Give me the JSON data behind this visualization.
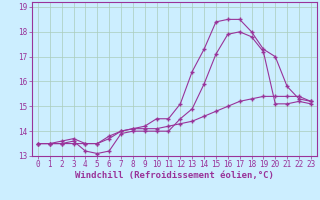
{
  "background_color": "#cceeff",
  "grid_color": "#aaccbb",
  "line_color": "#993399",
  "xlabel": "Windchill (Refroidissement éolien,°C)",
  "xlabel_fontsize": 6.5,
  "tick_fontsize": 5.5,
  "xlim": [
    -0.5,
    23.5
  ],
  "ylim": [
    13.0,
    19.2
  ],
  "yticks": [
    13,
    14,
    15,
    16,
    17,
    18,
    19
  ],
  "xticks": [
    0,
    1,
    2,
    3,
    4,
    5,
    6,
    7,
    8,
    9,
    10,
    11,
    12,
    13,
    14,
    15,
    16,
    17,
    18,
    19,
    20,
    21,
    22,
    23
  ],
  "line1_x": [
    0,
    1,
    2,
    3,
    4,
    5,
    6,
    7,
    8,
    9,
    10,
    11,
    12,
    13,
    14,
    15,
    16,
    17,
    18,
    19,
    20,
    21,
    22,
    23
  ],
  "line1_y": [
    13.5,
    13.5,
    13.5,
    13.5,
    13.5,
    13.5,
    13.7,
    14.0,
    14.1,
    14.1,
    14.1,
    14.2,
    14.3,
    14.4,
    14.6,
    14.8,
    15.0,
    15.2,
    15.3,
    15.4,
    15.4,
    15.4,
    15.4,
    15.2
  ],
  "line2_x": [
    0,
    1,
    2,
    3,
    4,
    5,
    6,
    7,
    8,
    9,
    10,
    11,
    12,
    13,
    14,
    15,
    16,
    17,
    18,
    19,
    20,
    21,
    22,
    23
  ],
  "line2_y": [
    13.5,
    13.5,
    13.5,
    13.6,
    13.2,
    13.1,
    13.2,
    13.9,
    14.0,
    14.0,
    14.0,
    14.0,
    14.5,
    14.9,
    15.9,
    17.1,
    17.9,
    18.0,
    17.8,
    17.2,
    15.1,
    15.1,
    15.2,
    15.1
  ],
  "line3_x": [
    0,
    1,
    2,
    3,
    4,
    5,
    6,
    7,
    8,
    9,
    10,
    11,
    12,
    13,
    14,
    15,
    16,
    17,
    18,
    19,
    20,
    21,
    22,
    23
  ],
  "line3_y": [
    13.5,
    13.5,
    13.6,
    13.7,
    13.5,
    13.5,
    13.8,
    14.0,
    14.1,
    14.2,
    14.5,
    14.5,
    15.1,
    16.4,
    17.3,
    18.4,
    18.5,
    18.5,
    18.0,
    17.3,
    17.0,
    15.8,
    15.3,
    15.2
  ]
}
